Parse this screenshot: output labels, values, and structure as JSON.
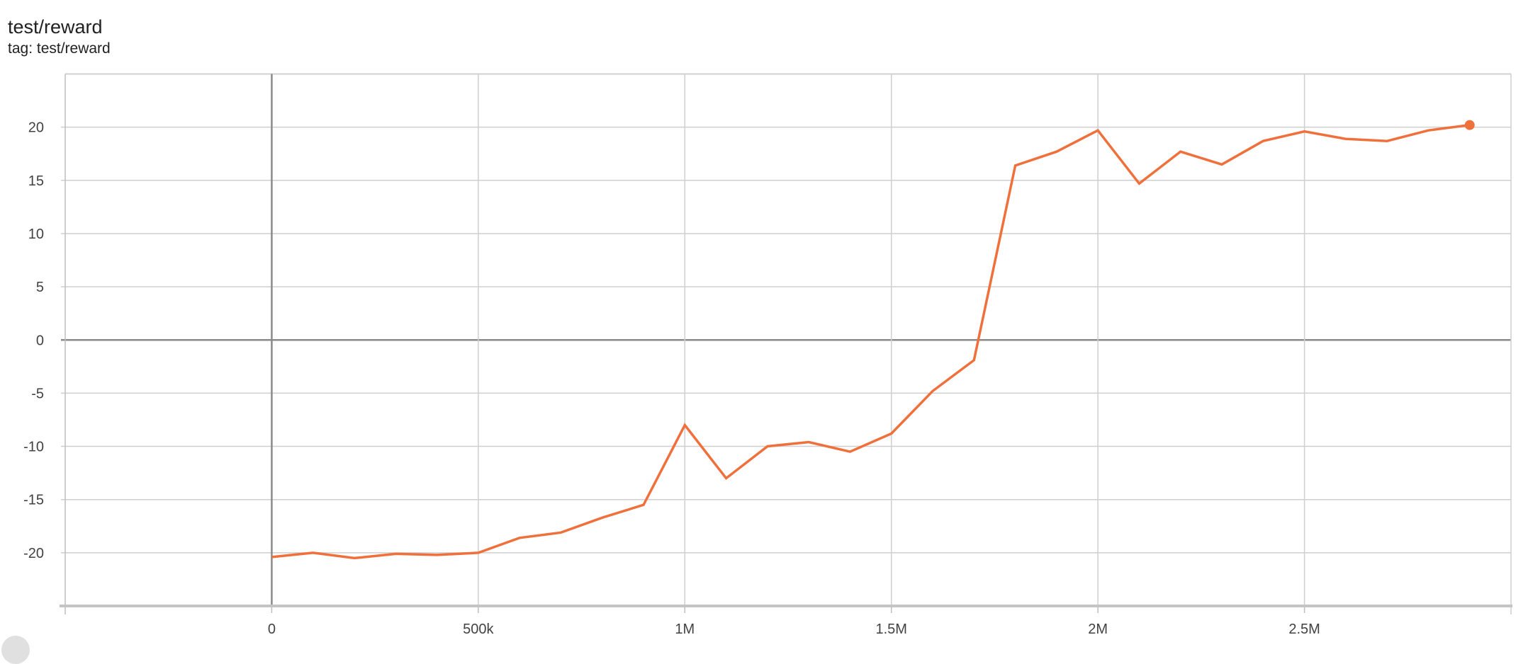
{
  "header": {
    "title": "test/reward",
    "subtitle": "tag: test/reward"
  },
  "chart_data": {
    "type": "line",
    "title": "test/reward",
    "xlabel": "",
    "ylabel": "",
    "xlim": [
      -500000,
      3000000
    ],
    "ylim": [
      -25,
      25
    ],
    "grid": true,
    "x_ticks": [
      0,
      500000,
      1000000,
      1500000,
      2000000,
      2500000
    ],
    "x_tick_labels": [
      "0",
      "500k",
      "1M",
      "1.5M",
      "2M",
      "2.5M"
    ],
    "y_ticks": [
      -20,
      -15,
      -10,
      -5,
      0,
      5,
      10,
      15,
      20
    ],
    "y_tick_labels": [
      "-20",
      "-15",
      "-10",
      "-5",
      "0",
      "5",
      "10",
      "15",
      "20"
    ],
    "color": "#f0703c",
    "series": [
      {
        "x": [
          0,
          100000,
          200000,
          300000,
          400000,
          500000,
          600000,
          700000,
          800000,
          900000,
          1000000,
          1100000,
          1200000,
          1300000,
          1400000,
          1500000,
          1600000,
          1700000,
          1800000,
          1900000,
          2000000,
          2100000,
          2200000,
          2300000,
          2400000,
          2500000,
          2600000,
          2700000,
          2800000,
          2900000
        ],
        "values": [
          -20.4,
          -20.0,
          -20.5,
          -20.1,
          -20.2,
          -20.0,
          -18.6,
          -18.1,
          -16.7,
          -15.5,
          -8.0,
          -13.0,
          -10.0,
          -9.6,
          -10.5,
          -8.8,
          -4.8,
          -1.9,
          16.4,
          17.7,
          19.7,
          14.7,
          17.7,
          16.5,
          18.7,
          19.6,
          18.9,
          18.7,
          19.7,
          20.2
        ]
      }
    ]
  }
}
